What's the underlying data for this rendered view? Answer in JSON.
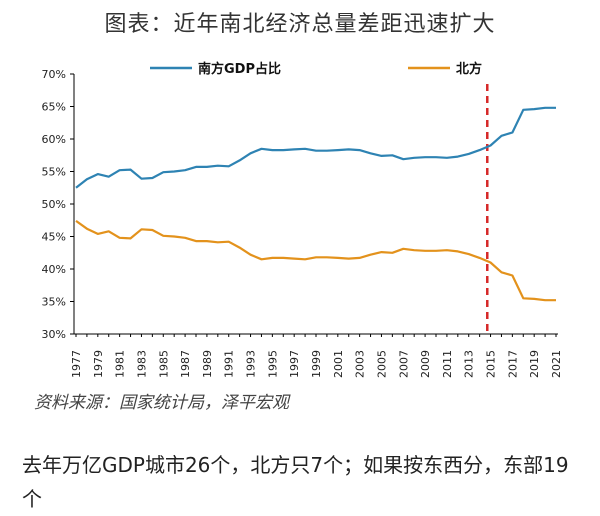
{
  "figure_title": "图表：近年南北经济总量差距迅速扩大",
  "source_note": "资料来源：国家统计局，泽平宏观",
  "body_text": "去年万亿GDP城市26个，北方只7个；如果按东西分，东部19个",
  "colors": {
    "south": "#2e83b3",
    "north": "#e3921c",
    "marker": "#d62828",
    "axis": "#000000"
  },
  "chart_data": {
    "type": "line",
    "title": "",
    "xlabel": "",
    "ylabel": "",
    "ylim": [
      30,
      70
    ],
    "y_ticks": [
      "30%",
      "35%",
      "40%",
      "45%",
      "50%",
      "55%",
      "60%",
      "65%",
      "70%"
    ],
    "x_ticks": [
      "1977",
      "1979",
      "1981",
      "1983",
      "1985",
      "1987",
      "1989",
      "1991",
      "1993",
      "1995",
      "1997",
      "1999",
      "2001",
      "2003",
      "2005",
      "2007",
      "2009",
      "2011",
      "2013",
      "2015",
      "2017",
      "2019",
      "2021"
    ],
    "x": [
      1977,
      1978,
      1979,
      1980,
      1981,
      1982,
      1983,
      1984,
      1985,
      1986,
      1987,
      1988,
      1989,
      1990,
      1991,
      1992,
      1993,
      1994,
      1995,
      1996,
      1997,
      1998,
      1999,
      2000,
      2001,
      2002,
      2003,
      2004,
      2005,
      2006,
      2007,
      2008,
      2009,
      2010,
      2011,
      2012,
      2013,
      2014,
      2015,
      2016,
      2017,
      2018,
      2019,
      2020,
      2021
    ],
    "legend_position": "top",
    "vline_x": 2014.7,
    "series": [
      {
        "name": "南方GDP占比",
        "color": "#2e83b3",
        "values": [
          52.5,
          53.8,
          54.6,
          54.2,
          55.2,
          55.3,
          53.9,
          54.0,
          54.9,
          55.0,
          55.2,
          55.7,
          55.7,
          55.9,
          55.8,
          56.7,
          57.8,
          58.5,
          58.3,
          58.3,
          58.4,
          58.5,
          58.2,
          58.2,
          58.3,
          58.4,
          58.3,
          57.8,
          57.4,
          57.5,
          56.9,
          57.1,
          57.2,
          57.2,
          57.1,
          57.3,
          57.7,
          58.3,
          59.0,
          60.5,
          61.0,
          64.5,
          64.6,
          64.8,
          64.8
        ]
      },
      {
        "name": "北方",
        "color": "#e3921c",
        "values": [
          47.4,
          46.2,
          45.4,
          45.8,
          44.8,
          44.7,
          46.1,
          46.0,
          45.1,
          45.0,
          44.8,
          44.3,
          44.3,
          44.1,
          44.2,
          43.3,
          42.2,
          41.5,
          41.7,
          41.7,
          41.6,
          41.5,
          41.8,
          41.8,
          41.7,
          41.6,
          41.7,
          42.2,
          42.6,
          42.5,
          43.1,
          42.9,
          42.8,
          42.8,
          42.9,
          42.7,
          42.3,
          41.7,
          41.0,
          39.5,
          39.0,
          35.5,
          35.4,
          35.2,
          35.2
        ]
      }
    ]
  }
}
